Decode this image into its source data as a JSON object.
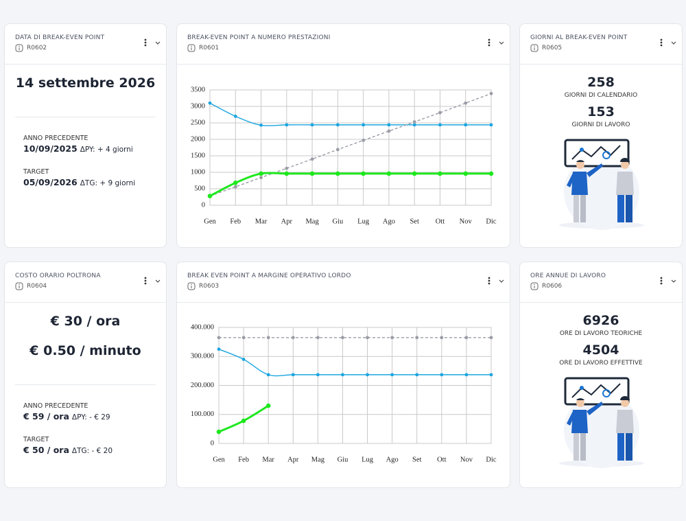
{
  "cards": [
    {
      "title": "DATA DI BREAK-EVEN POINT",
      "code": "R0602",
      "values": [
        "14 settembre 2026"
      ],
      "previous": {
        "label": "ANNO PRECEDENTE",
        "value": "10/09/2025",
        "delta": "ΔPY: + 4 giorni"
      },
      "target": {
        "label": "TARGET",
        "value": "05/09/2026",
        "delta": "ΔTG: + 9 giorni"
      }
    },
    {
      "title": "GIORNI AL BREAK-EVEN POINT",
      "code": "R0605",
      "kpis": [
        {
          "value": 258,
          "label": "GIORNI DI CALENDARIO"
        },
        {
          "value": 153,
          "label": "GIORNI DI LAVORO"
        }
      ]
    },
    {
      "title": "COSTO ORARIO POLTRONA",
      "code": "R0604",
      "values": [
        "€ 30 / ora",
        "€ 0.50 / minuto"
      ],
      "previous": {
        "label": "ANNO PRECEDENTE",
        "value": "€ 59 / ora",
        "delta": "ΔPY: - € 29"
      },
      "target": {
        "label": "TARGET",
        "value": "€ 50 / ora",
        "delta": "ΔTG: - € 20"
      }
    },
    {
      "title": "ORE ANNUE DI LAVORO",
      "code": "R0606",
      "kpis": [
        {
          "value": 6926,
          "label": "ORE DI LAVORO TEORICHE"
        },
        {
          "value": 4504,
          "label": "ORE DI LAVORO EFFETTIVE"
        }
      ]
    }
  ],
  "chart_data": [
    {
      "type": "line",
      "title": "BREAK-EVEN POINT A NUMERO PRESTAZIONI",
      "subtitle": "R0601",
      "categories": [
        "Gen",
        "Feb",
        "Mar",
        "Apr",
        "Mag",
        "Giu",
        "Lug",
        "Ago",
        "Set",
        "Ott",
        "Nov",
        "Dic"
      ],
      "ylim": [
        0,
        3500
      ],
      "yticks": [
        0,
        500,
        1000,
        1500,
        2000,
        2500,
        3000,
        3500
      ],
      "grid": true,
      "series": [
        {
          "color": "#1ba6e0",
          "values": [
            3100,
            2700,
            2430,
            2440,
            2440,
            2440,
            2440,
            2440,
            2440,
            2440,
            2440,
            2440
          ]
        },
        {
          "color": "#9a9ca6",
          "dashed": true,
          "values": [
            280,
            560,
            840,
            1120,
            1400,
            1690,
            1970,
            2250,
            2530,
            2810,
            3100,
            3390
          ]
        },
        {
          "color": "#1ee81e",
          "thick": true,
          "values": [
            280,
            680,
            960,
            960,
            960,
            960,
            960,
            960,
            960,
            960,
            960,
            960
          ]
        }
      ]
    },
    {
      "type": "line",
      "title": "BREAK EVEN POINT A MARGINE OPERATIVO LORDO",
      "subtitle": "R0603",
      "categories": [
        "Gen",
        "Feb",
        "Mar",
        "Apr",
        "Mag",
        "Giu",
        "Lug",
        "Ago",
        "Set",
        "Ott",
        "Nov",
        "Dic"
      ],
      "ylim": [
        0,
        400000
      ],
      "yticks": [
        0,
        {
          "value": 100000,
          "label": "100.000"
        },
        {
          "value": 200000,
          "label": "200.000"
        },
        {
          "value": 300000,
          "label": "300.000"
        },
        {
          "value": 400000,
          "label": "400.000"
        }
      ],
      "grid": true,
      "series": [
        {
          "color": "#1ba6e0",
          "values": [
            325000,
            290000,
            237000,
            237000,
            237000,
            237000,
            237000,
            237000,
            237000,
            237000,
            237000,
            237000
          ]
        },
        {
          "color": "#9a9ca6",
          "dashed": true,
          "values": [
            365000,
            365000,
            365000,
            365000,
            365000,
            365000,
            365000,
            365000,
            365000,
            365000,
            365000,
            365000
          ]
        },
        {
          "color": "#1ee81e",
          "thick": true,
          "values": [
            40000,
            78000,
            130000,
            null,
            null,
            null,
            null,
            null,
            null,
            null,
            null,
            null
          ]
        }
      ]
    }
  ]
}
